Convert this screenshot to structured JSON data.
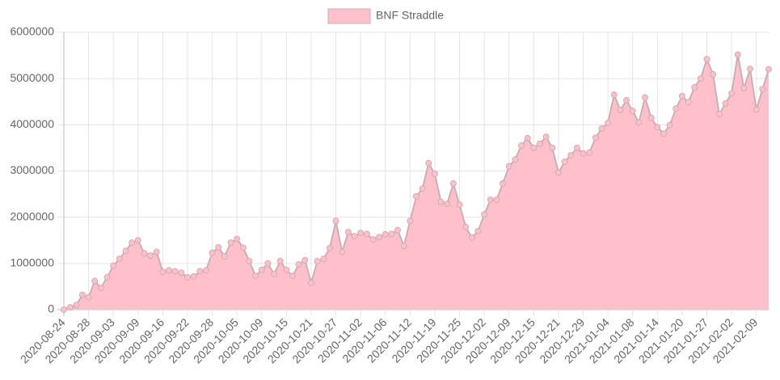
{
  "chart_data": {
    "type": "area",
    "series": [
      {
        "name": "BNF Straddle",
        "color": "#ffc0cb",
        "border_color": "#c8b0b4",
        "values": [
          0,
          50000,
          100000,
          320000,
          270000,
          620000,
          470000,
          700000,
          950000,
          1100000,
          1270000,
          1450000,
          1500000,
          1220000,
          1170000,
          1250000,
          820000,
          850000,
          830000,
          800000,
          700000,
          720000,
          830000,
          850000,
          1230000,
          1350000,
          1150000,
          1450000,
          1530000,
          1340000,
          1050000,
          730000,
          860000,
          1000000,
          770000,
          1050000,
          860000,
          730000,
          980000,
          1070000,
          580000,
          1050000,
          1100000,
          1330000,
          1920000,
          1250000,
          1680000,
          1590000,
          1660000,
          1640000,
          1520000,
          1570000,
          1630000,
          1640000,
          1720000,
          1380000,
          1920000,
          2450000,
          2620000,
          3170000,
          2940000,
          2330000,
          2290000,
          2730000,
          2270000,
          1790000,
          1560000,
          1700000,
          2060000,
          2380000,
          2380000,
          2730000,
          3100000,
          3250000,
          3550000,
          3710000,
          3500000,
          3590000,
          3740000,
          3500000,
          2970000,
          3200000,
          3340000,
          3500000,
          3380000,
          3400000,
          3720000,
          3920000,
          4040000,
          4650000,
          4320000,
          4530000,
          4300000,
          4050000,
          4590000,
          4150000,
          3950000,
          3810000,
          3990000,
          4350000,
          4620000,
          4490000,
          4810000,
          5000000,
          5420000,
          5090000,
          4230000,
          4460000,
          4680000,
          5520000,
          4790000,
          5210000,
          4330000,
          4770000,
          5200000
        ]
      }
    ],
    "categories": [
      "2020-08-24",
      null,
      null,
      null,
      "2020-08-28",
      null,
      null,
      null,
      "2020-09-03",
      null,
      null,
      null,
      "2020-09-09",
      null,
      null,
      null,
      "2020-09-16",
      null,
      null,
      null,
      "2020-09-22",
      null,
      null,
      null,
      "2020-09-28",
      null,
      null,
      null,
      "2020-10-05",
      null,
      null,
      null,
      "2020-10-09",
      null,
      null,
      null,
      "2020-10-15",
      null,
      null,
      null,
      "2020-10-21",
      null,
      null,
      null,
      "2020-10-27",
      null,
      null,
      null,
      "2020-11-02",
      null,
      null,
      null,
      "2020-11-06",
      null,
      null,
      null,
      "2020-11-12",
      null,
      null,
      null,
      "2020-11-19",
      null,
      null,
      null,
      "2020-11-25",
      null,
      null,
      null,
      "2020-12-02",
      null,
      null,
      null,
      "2020-12-09",
      null,
      null,
      null,
      "2020-12-15",
      null,
      null,
      null,
      "2020-12-21",
      null,
      null,
      null,
      "2020-12-29",
      null,
      null,
      null,
      "2021-01-04",
      null,
      null,
      null,
      "2021-01-08",
      null,
      null,
      null,
      "2021-01-14",
      null,
      null,
      null,
      "2021-01-20",
      null,
      null,
      null,
      "2021-01-27",
      null,
      null,
      null,
      "2021-02-02",
      null,
      null,
      null,
      "2021-02-09",
      null,
      null
    ],
    "ylim": [
      0,
      6000000
    ],
    "yticks": [
      0,
      1000000,
      2000000,
      3000000,
      4000000,
      5000000,
      6000000
    ],
    "grid": true,
    "legend": "top"
  }
}
